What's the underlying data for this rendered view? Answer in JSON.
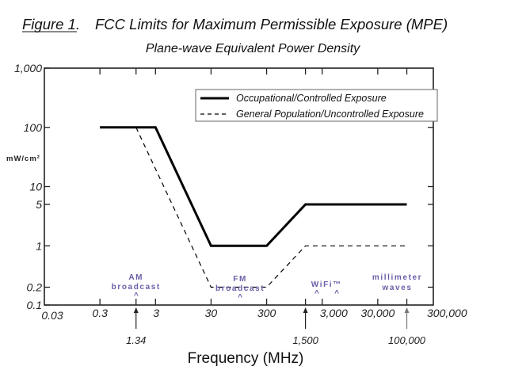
{
  "figure": {
    "label": "Figure 1.",
    "title": "FCC Limits for Maximum Permissible Exposure (MPE)",
    "subtitle": "Plane-wave Equivalent  Power Density"
  },
  "chart_data": {
    "type": "line",
    "title": "FCC Limits for Maximum Permissible Exposure (MPE)",
    "subtitle": "Plane-wave Equivalent  Power Density",
    "xlabel": "Frequency (MHz)",
    "ylabel": "mW/cm²",
    "xscale": "log",
    "yscale": "log",
    "xlim": [
      0.03,
      300000
    ],
    "ylim": [
      0.1,
      1000
    ],
    "grid": false,
    "legend_position": "top-right",
    "x_ticks": [
      0.03,
      0.3,
      3,
      30,
      300,
      3000,
      30000,
      300000
    ],
    "x_tick_labels": [
      "0.03",
      "0.3",
      "3",
      "30",
      "300",
      "3,000",
      "30,000",
      "300,000"
    ],
    "y_ticks": [
      0.1,
      0.2,
      1,
      5,
      10,
      100,
      1000
    ],
    "y_tick_labels": [
      "0.1",
      "0.2",
      "1",
      "5",
      "10",
      "100",
      "1,000"
    ],
    "series": [
      {
        "name": "Occupational/Controlled Exposure",
        "style": "solid",
        "color": "#000000",
        "x": [
          0.3,
          3,
          30,
          300,
          1500,
          100000
        ],
        "y": [
          100,
          100,
          1,
          1,
          5,
          5
        ]
      },
      {
        "name": "General Population/Uncontrolled Exposure",
        "style": "dashed",
        "color": "#000000",
        "x": [
          1.34,
          30,
          300,
          1500,
          100000
        ],
        "y": [
          100,
          0.2,
          0.2,
          1,
          1
        ]
      }
    ],
    "markers": [
      {
        "value": 1.34,
        "label": "1.34"
      },
      {
        "value": 1500,
        "label": "1,500"
      },
      {
        "value": 100000,
        "label": "100,000"
      }
    ],
    "annotations": [
      {
        "lines": [
          "AM",
          "broadcast"
        ],
        "carets_at": [
          1.34
        ]
      },
      {
        "lines": [
          "FM",
          "broadcast"
        ],
        "carets_at": [
          100
        ]
      },
      {
        "lines": [
          "WiFi™"
        ],
        "carets_at": [
          2400,
          5500
        ]
      },
      {
        "lines": [
          "millimeter",
          "waves"
        ],
        "carets_at": []
      }
    ],
    "annotation_color": "#6a5fa8"
  }
}
